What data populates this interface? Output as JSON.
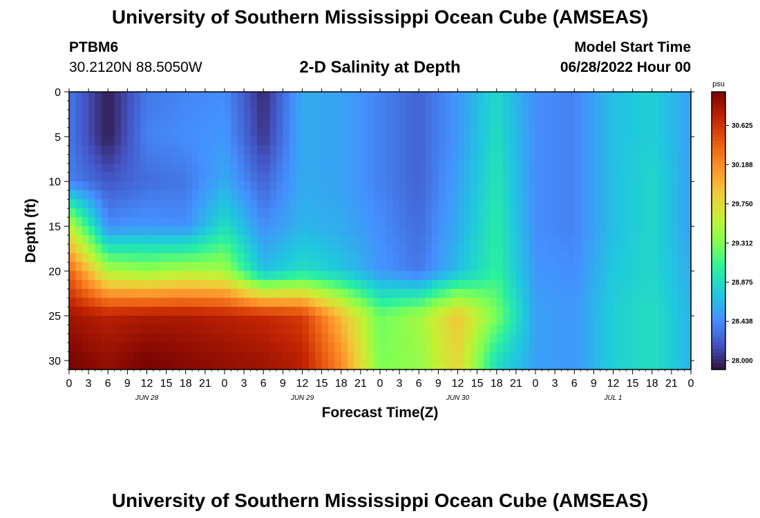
{
  "header": {
    "title": "University of Southern Mississippi Ocean Cube (AMSEAS)",
    "station": "PTBM6",
    "coords": "30.2120N  88.5050W",
    "plot_title": "2-D Salinity at Depth",
    "start_label": "Model Start Time",
    "start_value": "06/28/2022 Hour 00"
  },
  "footer": {
    "title": "University of Southern Mississippi Ocean Cube (AMSEAS)"
  },
  "chart_data": {
    "type": "heatmap",
    "xlabel": "Forecast Time(Z)",
    "ylabel": "Depth (ft)",
    "x_range": [
      0,
      96
    ],
    "x_ticks": [
      0,
      3,
      6,
      9,
      12,
      15,
      18,
      21,
      24,
      27,
      30,
      33,
      36,
      39,
      42,
      45,
      48,
      51,
      54,
      57,
      60,
      63,
      66,
      69,
      72,
      75,
      78,
      81,
      84,
      87,
      90,
      93,
      96
    ],
    "x_tick_labels": [
      "0",
      "3",
      "6",
      "9",
      "12",
      "15",
      "18",
      "21",
      "0",
      "3",
      "6",
      "9",
      "12",
      "15",
      "18",
      "21",
      "0",
      "3",
      "6",
      "9",
      "12",
      "15",
      "18",
      "21",
      "0",
      "3",
      "6",
      "9",
      "12",
      "15",
      "18",
      "21",
      "0"
    ],
    "date_labels": [
      {
        "label": "JUN 28",
        "hour": 12
      },
      {
        "label": "JUN 29",
        "hour": 36
      },
      {
        "label": "JUN 30",
        "hour": 60
      },
      {
        "label": "JUL 1",
        "hour": 84
      }
    ],
    "y_range": [
      0,
      31
    ],
    "y_ticks": [
      0,
      5,
      10,
      15,
      20,
      25,
      30
    ],
    "y_reversed": true,
    "colorbar": {
      "unit": "psu",
      "min": 27.9,
      "max": 31.0,
      "tick_values": [
        30.625,
        30.188,
        29.75,
        29.312,
        28.875,
        28.438,
        28.0
      ],
      "tick_labels": [
        "30.625",
        "30.188",
        "29.750",
        "29.312",
        "28.875",
        "28.438",
        "28.000"
      ]
    },
    "colormap": [
      "#30123b",
      "#4454c4",
      "#4490fe",
      "#1fc8de",
      "#29efa2",
      "#7eff55",
      "#c4f133",
      "#f1ca3a",
      "#fe922a",
      "#e95b10",
      "#c22402",
      "#7a0403"
    ],
    "times": [
      0,
      6,
      12,
      18,
      24,
      30,
      36,
      42,
      48,
      54,
      60,
      66,
      72,
      78,
      84,
      90,
      96
    ],
    "depths": [
      0,
      5,
      10,
      15,
      20,
      25,
      30
    ],
    "values": [
      [
        28.35,
        27.95,
        28.35,
        28.42,
        28.45,
        28.0,
        28.6,
        28.55,
        28.4,
        28.25,
        28.5,
        28.85,
        28.45,
        28.4,
        28.7,
        28.8,
        28.55
      ],
      [
        28.35,
        27.95,
        28.4,
        28.45,
        28.5,
        28.05,
        28.6,
        28.55,
        28.4,
        28.25,
        28.5,
        28.9,
        28.45,
        28.4,
        28.7,
        28.8,
        28.55
      ],
      [
        28.4,
        28.2,
        28.3,
        28.35,
        28.6,
        28.25,
        28.6,
        28.55,
        28.4,
        28.25,
        28.55,
        28.95,
        28.45,
        28.4,
        28.7,
        28.85,
        28.55
      ],
      [
        29.6,
        28.45,
        28.5,
        28.45,
        28.9,
        28.45,
        28.65,
        28.6,
        28.45,
        28.3,
        28.6,
        29.0,
        28.45,
        28.4,
        28.7,
        28.85,
        28.55
      ],
      [
        30.4,
        29.5,
        29.4,
        29.5,
        29.45,
        28.7,
        28.9,
        28.75,
        28.5,
        28.35,
        28.7,
        29.05,
        28.5,
        28.45,
        28.75,
        28.85,
        28.6
      ],
      [
        30.85,
        30.75,
        30.8,
        30.8,
        30.75,
        30.7,
        30.6,
        29.95,
        29.25,
        29.45,
        29.9,
        29.3,
        28.55,
        28.5,
        28.8,
        28.9,
        28.65
      ],
      [
        31.0,
        30.9,
        31.0,
        30.95,
        30.9,
        30.85,
        30.75,
        30.2,
        29.3,
        29.4,
        29.8,
        28.9,
        28.55,
        28.5,
        28.8,
        28.9,
        28.65
      ]
    ]
  }
}
